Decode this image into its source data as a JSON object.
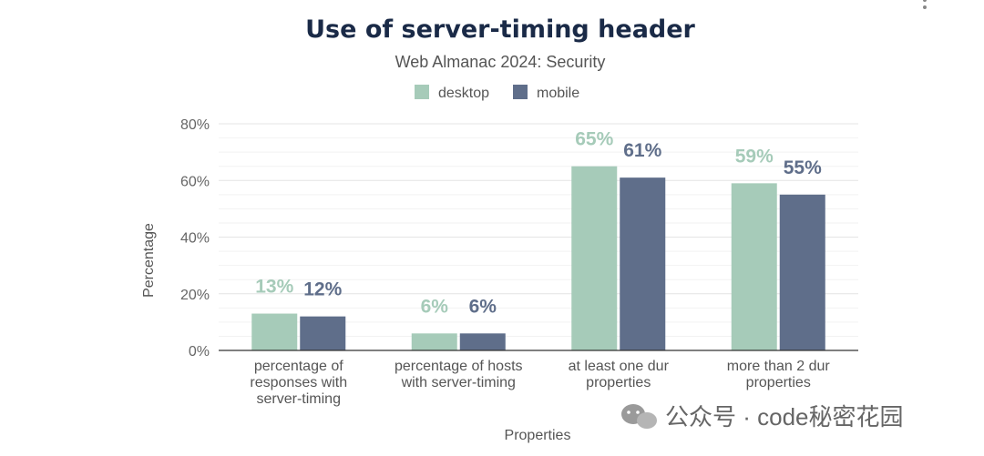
{
  "chart_data": {
    "type": "bar",
    "title": "Use of server-timing header",
    "subtitle": "Web Almanac 2024: Security",
    "xlabel": "Properties",
    "ylabel": "Percentage",
    "ylim": [
      0,
      80
    ],
    "yticks": [
      0,
      20,
      40,
      60,
      80
    ],
    "ytick_labels": [
      "0%",
      "20%",
      "40%",
      "60%",
      "80%"
    ],
    "grid": true,
    "legend": "top-center",
    "categories": [
      [
        "percentage of",
        "responses with",
        "server-timing"
      ],
      [
        "percentage of hosts",
        "with server-timing"
      ],
      [
        "at least one dur",
        "properties"
      ],
      [
        "more than 2 dur",
        "properties"
      ]
    ],
    "series": [
      {
        "name": "desktop",
        "color": "#a6cbb9",
        "values": [
          13,
          6,
          65,
          59
        ],
        "labels": [
          "13%",
          "6%",
          "65%",
          "59%"
        ]
      },
      {
        "name": "mobile",
        "color": "#5f6e8a",
        "values": [
          12,
          6,
          61,
          55
        ],
        "labels": [
          "12%",
          "6%",
          "61%",
          "55%"
        ]
      }
    ]
  },
  "watermark": "公众号 · code秘密花园",
  "colors": {
    "title": "#1a2a47",
    "grid": "#e8e8e8",
    "axis": "#333333"
  }
}
